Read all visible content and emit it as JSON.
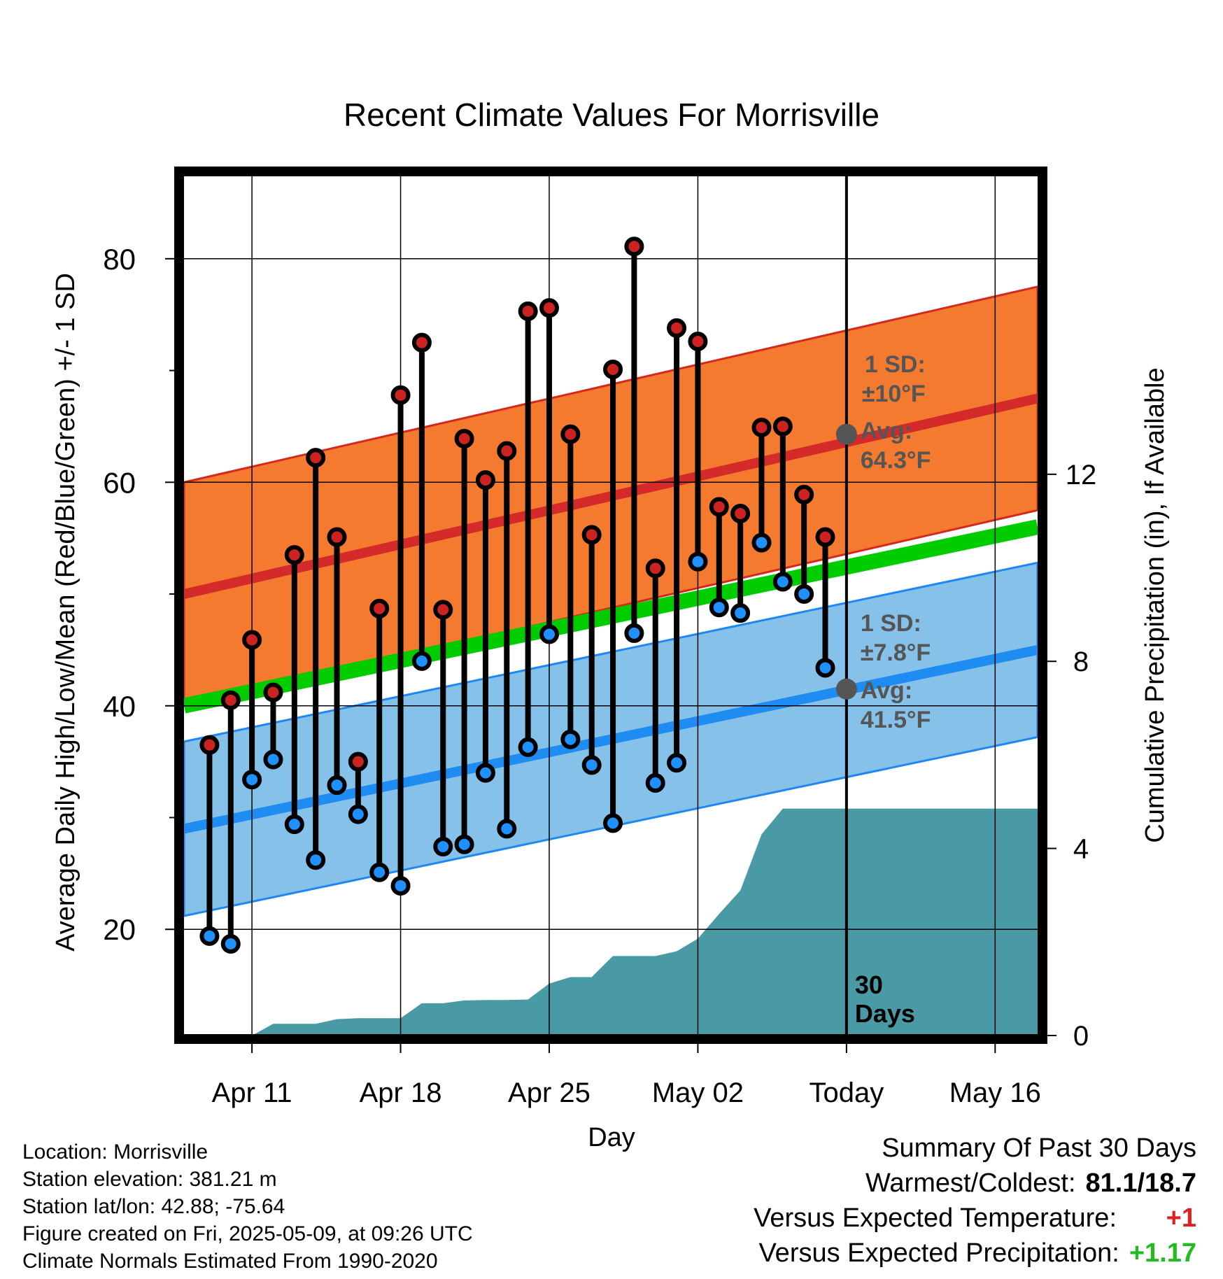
{
  "chart_data": {
    "type": "line",
    "title": "Recent Climate Values For Morrisville",
    "xlabel": "Day",
    "ylabel": "Average Daily High/Low/Mean (Red/Blue/Green) +/- 1 SD",
    "y2label": "Cumulative Precipitation (in), If Available",
    "xlim": [
      -3.2,
      37
    ],
    "ylim": [
      10.5,
      87.5
    ],
    "y2lim": [
      0,
      18.4
    ],
    "yticks": [
      {
        "v": 20,
        "label": "20"
      },
      {
        "v": 40,
        "label": "40"
      },
      {
        "v": 60,
        "label": "60"
      },
      {
        "v": 80,
        "label": "80"
      }
    ],
    "yticks_minor": [
      30,
      50,
      70
    ],
    "y2ticks": [
      {
        "v": 0,
        "label": "0"
      },
      {
        "v": 4,
        "label": "4"
      },
      {
        "v": 8,
        "label": "8"
      },
      {
        "v": 12,
        "label": "12"
      }
    ],
    "xticks": [
      {
        "x": 0,
        "label": "Apr 11"
      },
      {
        "x": 7,
        "label": "Apr 18"
      },
      {
        "x": 14,
        "label": "Apr 25"
      },
      {
        "x": 21,
        "label": "May 02"
      },
      {
        "x": 28,
        "label": "Today"
      },
      {
        "x": 35,
        "label": "May 16"
      }
    ],
    "grid": true,
    "today_x": 28,
    "today_label": [
      "30",
      "Days"
    ],
    "x": [
      -2,
      -1,
      0,
      1,
      2,
      3,
      4,
      5,
      6,
      7,
      8,
      9,
      10,
      11,
      12,
      13,
      14,
      15,
      16,
      17,
      18,
      19,
      20,
      21,
      22,
      23,
      24,
      25,
      26,
      27
    ],
    "series": [
      {
        "role": "high",
        "color": "#cc2222",
        "values": [
          36.5,
          40.5,
          45.9,
          41.2,
          53.5,
          62.2,
          55.1,
          35.0,
          48.7,
          67.8,
          72.5,
          48.6,
          63.9,
          60.2,
          62.8,
          75.3,
          75.6,
          64.3,
          55.3,
          70.1,
          81.1,
          52.3,
          73.8,
          72.6,
          57.8,
          57.2,
          64.9,
          65.0,
          58.9,
          55.1
        ]
      },
      {
        "role": "low",
        "color": "#1e90ff",
        "values": [
          19.4,
          18.7,
          33.4,
          35.2,
          29.4,
          26.2,
          32.9,
          30.3,
          25.1,
          23.9,
          44.0,
          27.4,
          27.6,
          34.0,
          29.0,
          36.3,
          46.4,
          37.0,
          34.7,
          29.5,
          46.5,
          33.1,
          34.9,
          52.9,
          48.8,
          48.3,
          54.6,
          51.1,
          50.0,
          43.4
        ]
      }
    ],
    "normals": {
      "x_range": [
        -3.2,
        37
      ],
      "high_avg": [
        50.0,
        67.5
      ],
      "low_avg": [
        29.0,
        45.0
      ],
      "mean_avg": [
        40.0,
        56.0
      ],
      "high_sd": 10,
      "low_sd": 7.8
    },
    "precip": {
      "color": "#4a9aa5",
      "x": [
        -3.2,
        0,
        1,
        2,
        3,
        4,
        5,
        6,
        7,
        8,
        9,
        10,
        11,
        12,
        13,
        14,
        15,
        16,
        17,
        18,
        19,
        20,
        21,
        22,
        23,
        24,
        25,
        26,
        27,
        37
      ],
      "values": [
        0,
        0,
        0.25,
        0.25,
        0.25,
        0.35,
        0.37,
        0.37,
        0.37,
        0.69,
        0.69,
        0.75,
        0.76,
        0.76,
        0.77,
        1.11,
        1.25,
        1.25,
        1.7,
        1.7,
        1.7,
        1.8,
        2.07,
        2.6,
        3.1,
        4.3,
        4.85,
        4.85,
        4.85,
        4.85
      ]
    },
    "annotations": {
      "high": {
        "sd_label": "1 SD:",
        "sd_value": "±10°F",
        "avg_label": "Avg:",
        "avg_value": "64.3°F",
        "value": 64.3
      },
      "low": {
        "sd_label": "1 SD:",
        "sd_value": "±7.8°F",
        "avg_label": "Avg:",
        "avg_value": "41.5°F",
        "value": 41.5
      }
    }
  },
  "info": {
    "location": "Location: Morrisville",
    "elevation": "Station elevation: 381.21 m",
    "latlon": "Station lat/lon: 42.88; -75.64",
    "created": "Figure created on Fri, 2025-05-09, at 09:26 UTC",
    "normals": "Climate Normals Estimated From 1990-2020"
  },
  "summary": {
    "heading": "Summary Of Past 30 Days",
    "warmest_label": "Warmest/Coldest:",
    "warmest_value": "81.1/18.7",
    "temp_label": "Versus Expected Temperature:",
    "temp_value": "+1",
    "temp_color": "#dd2222",
    "precip_label": "Versus Expected Precipitation:",
    "precip_value": "+1.17",
    "precip_color": "#22bb22"
  }
}
